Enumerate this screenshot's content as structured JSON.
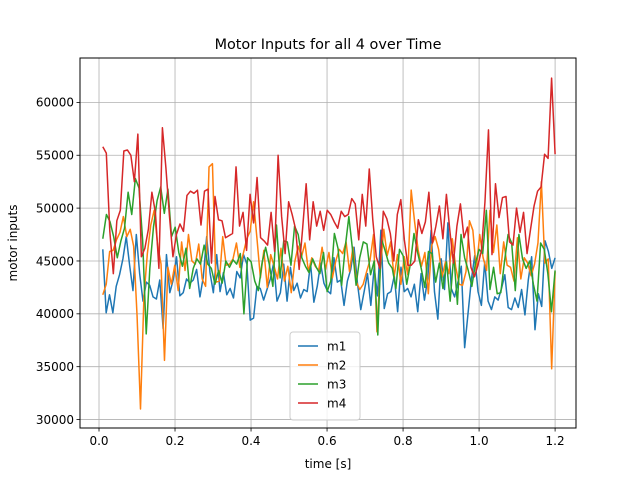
{
  "chart_data": {
    "type": "line",
    "title": "Motor Inputs for all 4 over Time",
    "xlabel": "time [s]",
    "ylabel": "motor inputs",
    "xlim": [
      -0.05,
      1.255
    ],
    "ylim": [
      29200,
      64200
    ],
    "xticks": [
      0.0,
      0.2,
      0.4,
      0.6,
      0.8,
      1.0,
      1.2
    ],
    "xtick_labels": [
      "0.0",
      "0.2",
      "0.4",
      "0.6",
      "0.8",
      "1.0",
      "1.2"
    ],
    "yticks": [
      30000,
      35000,
      40000,
      45000,
      50000,
      55000,
      60000
    ],
    "ytick_labels": [
      "30000",
      "35000",
      "40000",
      "45000",
      "50000",
      "55000",
      "60000"
    ],
    "grid": true,
    "legend_position": "lower-center",
    "x_start": 0.01,
    "x_step": 0.01,
    "series": [
      {
        "name": "m1",
        "color": "#1f77b4",
        "values": [
          46100,
          40100,
          41800,
          40100,
          42600,
          43700,
          45200,
          47300,
          44600,
          42200,
          47500,
          43800,
          41200,
          43000,
          42700,
          41600,
          41400,
          43200,
          38600,
          45600,
          42000,
          43200,
          45400,
          41700,
          42000,
          43300,
          42900,
          43200,
          44200,
          41600,
          43500,
          47300,
          43900,
          42000,
          45600,
          42100,
          43900,
          41800,
          42400,
          41500,
          44000,
          43400,
          45600,
          44700,
          39400,
          39600,
          42600,
          42400,
          41300,
          42300,
          43300,
          44800,
          41200,
          42000,
          44700,
          41200,
          44400,
          42200,
          42900,
          41500,
          42300,
          42100,
          44800,
          41100,
          42600,
          44800,
          42900,
          42200,
          41900,
          45300,
          43000,
          43200,
          40800,
          43100,
          44200,
          46300,
          42900,
          40400,
          42100,
          43800,
          40800,
          44400,
          41700,
          47900,
          40500,
          41900,
          42100,
          43600,
          40200,
          44400,
          42100,
          42400,
          41600,
          42800,
          40200,
          43800,
          41300,
          43400,
          47900,
          42100,
          39500,
          45200,
          42300,
          48600,
          42400,
          41600,
          43000,
          44500,
          36800,
          40000,
          43200,
          45500,
          42100,
          40800,
          44900,
          41200,
          40400,
          41600,
          41300,
          42400,
          43700,
          40600,
          40400,
          41500,
          40600,
          42300,
          39900,
          43200,
          45400,
          38500,
          41900,
          40700,
          46900,
          45900,
          44300,
          45300
        ]
      },
      {
        "name": "m2",
        "color": "#ff7f0e",
        "values": [
          41800,
          42800,
          45900,
          46000,
          47000,
          47700,
          49200,
          47300,
          48000,
          46400,
          39800,
          31000,
          41600,
          45700,
          48400,
          49800,
          46500,
          44700,
          35600,
          44400,
          42800,
          44600,
          42200,
          46800,
          44100,
          47500,
          45000,
          44700,
          46600,
          43300,
          42600,
          53900,
          54200,
          43000,
          43100,
          47300,
          44600,
          44700,
          45200,
          46700,
          44400,
          45700,
          47100,
          47800,
          50600,
          47100,
          43400,
          46000,
          42500,
          45600,
          44500,
          43300,
          46200,
          43100,
          44500,
          42000,
          44900,
          46400,
          45400,
          46700,
          44000,
          45300,
          44500,
          44100,
          46300,
          44200,
          45800,
          43400,
          45000,
          46100,
          45700,
          46800,
          44000,
          46300,
          43000,
          42300,
          42800,
          44000,
          45100,
          47500,
          38300,
          44300,
          48000,
          45500,
          46800,
          43500,
          45600,
          42800,
          45400,
          43700,
          51700,
          48700,
          46100,
          44500,
          45800,
          41900,
          46500,
          47300,
          46100,
          43500,
          44900,
          43800,
          47100,
          44400,
          42800,
          42700,
          44000,
          48800,
          47900,
          44200,
          47500,
          45300,
          44100,
          49800,
          45800,
          48400,
          43800,
          46800,
          44600,
          44400,
          43100,
          47200,
          43300,
          45300,
          44800,
          43600,
          44700,
          46700,
          52500,
          44800,
          45200,
          34800,
          44000
        ]
      },
      {
        "name": "m3",
        "color": "#2ca02c",
        "values": [
          47100,
          49400,
          48700,
          47300,
          45300,
          46900,
          48100,
          51500,
          49400,
          52800,
          51900,
          47000,
          38100,
          44300,
          48200,
          50700,
          52000,
          49500,
          51800,
          47300,
          48200,
          45800,
          44500,
          46200,
          42400,
          44300,
          45200,
          44700,
          46500,
          44700,
          44300,
          42800,
          44100,
          42900,
          45000,
          44400,
          45100,
          44700,
          45700,
          40000,
          45300,
          44900,
          43100,
          42200,
          44800,
          46300,
          44700,
          42600,
          48400,
          43400,
          46900,
          46800,
          44600,
          48300,
          47500,
          45300,
          44500,
          43900,
          45200,
          44400,
          43800,
          45800,
          42100,
          43100,
          47600,
          46200,
          42700,
          46300,
          49200,
          46100,
          42700,
          45300,
          46800,
          46600,
          43700,
          45000,
          38000,
          47100,
          46000,
          44800,
          44300,
          42400,
          46100,
          45500,
          42800,
          44700,
          47600,
          45800,
          44300,
          42500,
          45900,
          45700,
          43000,
          44800,
          42400,
          44900,
          41200,
          45600,
          40900,
          47500,
          45300,
          44100,
          42600,
          44800,
          46100,
          45700,
          49800,
          42300,
          44400,
          41900,
          42000,
          44900,
          47500,
          46700,
          42200,
          47500,
          45200,
          44300,
          45000,
          42800,
          41200,
          46700,
          46100,
          43800,
          40200,
          44100
        ]
      },
      {
        "name": "m4",
        "color": "#d62728",
        "values": [
          55800,
          55200,
          47800,
          43800,
          48800,
          49800,
          55400,
          55500,
          55000,
          52500,
          57000,
          45400,
          46200,
          48000,
          51500,
          49600,
          44300,
          57600,
          53800,
          49300,
          45400,
          47500,
          48500,
          47800,
          51200,
          51600,
          51400,
          51700,
          48400,
          51600,
          51800,
          44800,
          51100,
          48900,
          48800,
          47200,
          47400,
          47600,
          53900,
          48300,
          49600,
          46000,
          51300,
          48600,
          52900,
          47200,
          46900,
          46500,
          49600,
          45900,
          55000,
          49200,
          45700,
          50600,
          49400,
          48000,
          44200,
          48100,
          52300,
          47000,
          50600,
          48300,
          49700,
          47900,
          49800,
          49400,
          48700,
          48100,
          49700,
          49200,
          49400,
          50900,
          50400,
          47000,
          51300,
          48300,
          53700,
          48900,
          45400,
          44300,
          49700,
          49000,
          47600,
          45000,
          49400,
          50800,
          47000,
          44600,
          44600,
          45000,
          48900,
          47600,
          48700,
          51500,
          46700,
          48300,
          50200,
          47100,
          51300,
          47800,
          44800,
          48300,
          50400,
          47200,
          48200,
          44400,
          43500,
          44600,
          46000,
          50600,
          57400,
          45600,
          52300,
          49100,
          51000,
          51100,
          46800,
          46500,
          50000,
          47700,
          49600,
          45700,
          48000,
          50200,
          51600,
          52000,
          55100,
          54700,
          62300,
          55100
        ]
      }
    ]
  }
}
